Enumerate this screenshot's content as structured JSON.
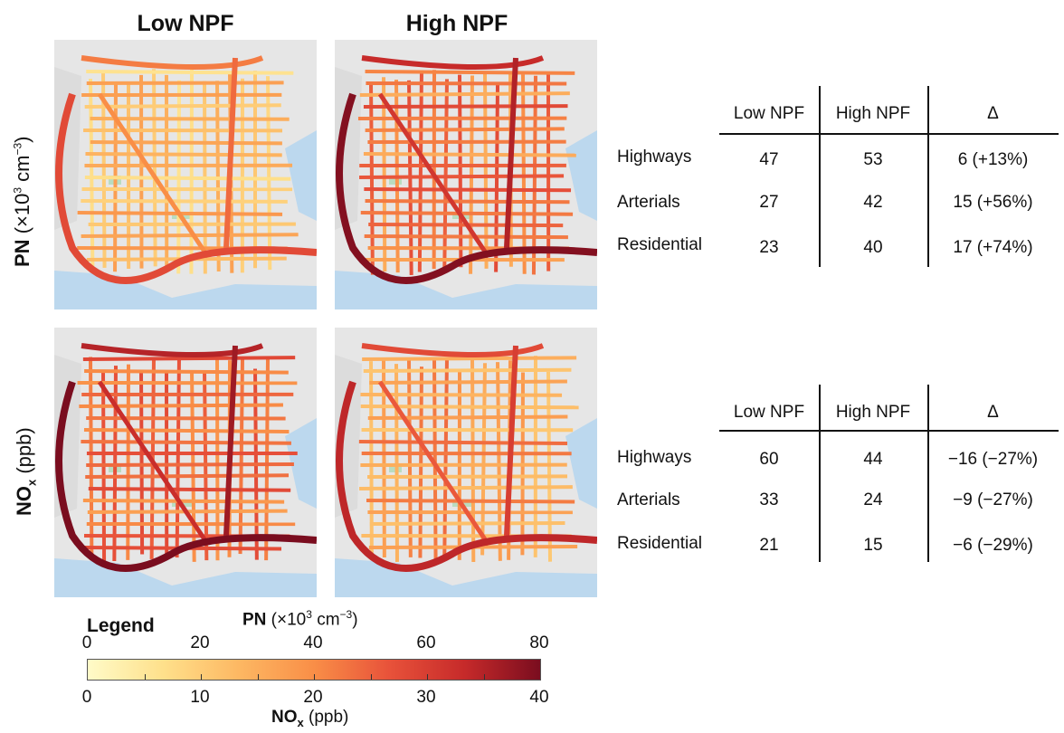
{
  "columns": {
    "low": "Low NPF",
    "high": "High NPF"
  },
  "rows": {
    "pn": {
      "bold": "PN",
      "rest": " (×10",
      "sup": "3",
      "rest2": " cm",
      "sup2": "−3",
      "rest3": ")"
    },
    "nox": {
      "bold": "NO",
      "sub": "x",
      "rest": " (ppb)"
    }
  },
  "tables": [
    {
      "name": "pn-table",
      "headers": [
        "Low NPF",
        "High NPF",
        "Δ"
      ],
      "rows": [
        {
          "label": "Highways",
          "low": "47",
          "high": "53",
          "delta": "6 (+13%)"
        },
        {
          "label": "Arterials",
          "low": "27",
          "high": "42",
          "delta": "15 (+56%)"
        },
        {
          "label": "Residential",
          "low": "23",
          "high": "40",
          "delta": "17 (+74%)"
        }
      ]
    },
    {
      "name": "nox-table",
      "headers": [
        "Low NPF",
        "High NPF",
        "Δ"
      ],
      "rows": [
        {
          "label": "Highways",
          "low": "60",
          "high": "44",
          "delta": "−16 (−27%)"
        },
        {
          "label": "Arterials",
          "low": "33",
          "high": "24",
          "delta": "−9 (−27%)"
        },
        {
          "label": "Residential",
          "low": "21",
          "high": "15",
          "delta": "−6 (−29%)"
        }
      ]
    }
  ],
  "legend": {
    "title": "Legend",
    "pn_label": {
      "bold": "PN",
      "rest": " (×10",
      "sup": "3",
      "rest2": " cm",
      "sup2": "−3",
      "rest3": ")"
    },
    "nox_label": {
      "bold": "NO",
      "sub": "x",
      "rest": " (ppb)"
    },
    "pn_ticks": [
      "0",
      "20",
      "40",
      "60",
      "80"
    ],
    "nox_ticks": [
      "0",
      "10",
      "20",
      "30",
      "40"
    ],
    "colors": [
      "#fffbc8",
      "#fee08b",
      "#fdb863",
      "#f98e47",
      "#e8523a",
      "#c62a2a",
      "#7a0d1f"
    ]
  },
  "maps": [
    {
      "name": "map-pn-low",
      "intensity": 0.3
    },
    {
      "name": "map-pn-high",
      "intensity": 0.58
    },
    {
      "name": "map-nox-low",
      "intensity": 0.62
    },
    {
      "name": "map-nox-high",
      "intensity": 0.45
    }
  ]
}
